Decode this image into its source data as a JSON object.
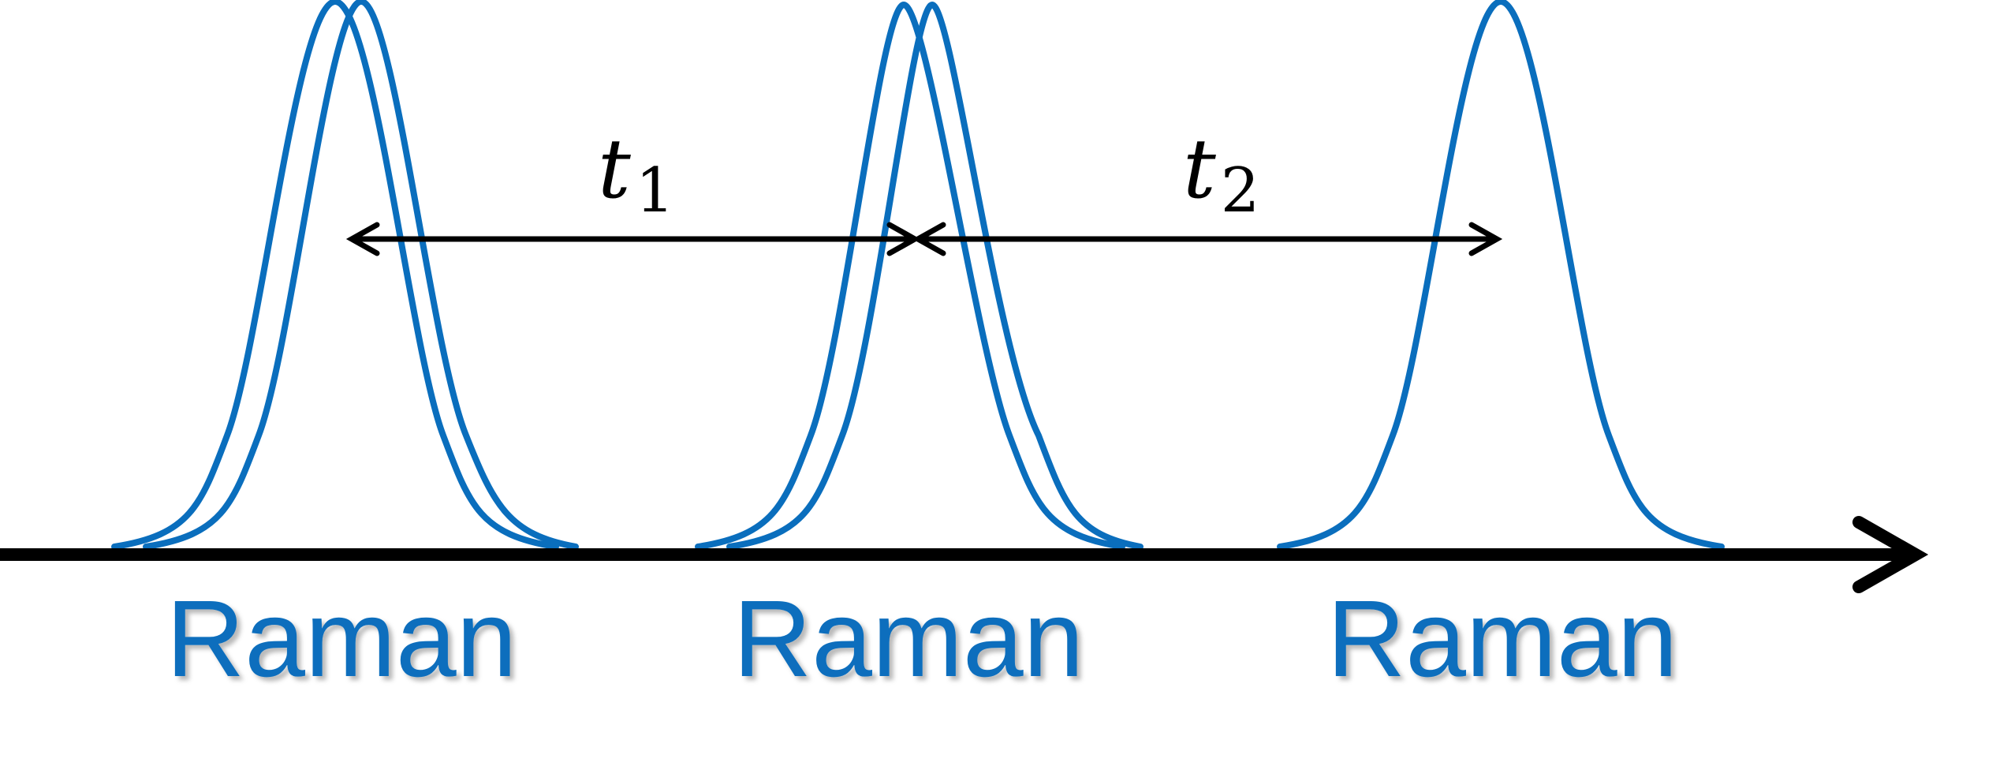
{
  "diagram": {
    "pulse_labels": [
      "Raman",
      "Raman",
      "Raman"
    ],
    "intervals": [
      {
        "symbol": "t",
        "subscript": "1"
      },
      {
        "symbol": "t",
        "subscript": "2"
      }
    ],
    "colors": {
      "pulse": "#0A6EBD",
      "label": "#0A6EBD",
      "axis": "#000000",
      "interval_arrow": "#000000"
    }
  }
}
